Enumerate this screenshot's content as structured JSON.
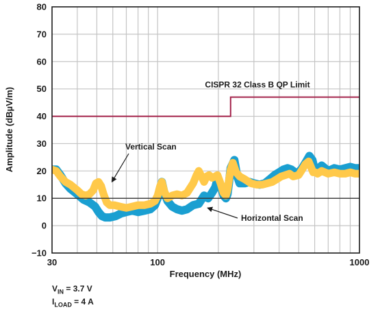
{
  "chart_data": {
    "type": "line",
    "xlabel": "Frequency (MHz)",
    "ylabel": "Amplitude (dBµV/m)",
    "xscale": "log",
    "xlim": [
      30,
      1000
    ],
    "ylim": [
      -10,
      80
    ],
    "x_ticks": [
      30,
      100,
      1000
    ],
    "x_tick_labels": [
      "30",
      "100",
      "1000"
    ],
    "y_ticks": [
      -10,
      0,
      10,
      20,
      30,
      40,
      50,
      60,
      70,
      80
    ],
    "y_tick_labels": [
      "−10",
      "0",
      "10",
      "20",
      "30",
      "40",
      "50",
      "60",
      "70",
      "80"
    ],
    "grid": true,
    "reference_line": {
      "y": 10,
      "color": "#333333"
    },
    "series": [
      {
        "name": "Horizontal Scan",
        "color": "#1a9fd1",
        "band_width": 3.0,
        "x": [
          30,
          31.5,
          33,
          35,
          37,
          40,
          43,
          46,
          49,
          51,
          53,
          55,
          58,
          62,
          66,
          70,
          75,
          80,
          86,
          92,
          97,
          100,
          103,
          105,
          108,
          112,
          118,
          125,
          132,
          140,
          150,
          160,
          170,
          178,
          186,
          193,
          198,
          205,
          212,
          218,
          222,
          226,
          230,
          240,
          248,
          255,
          262,
          270,
          285,
          300,
          320,
          340,
          360,
          380,
          400,
          420,
          440,
          460,
          480,
          500,
          520,
          545,
          565,
          585,
          600,
          620,
          650,
          700,
          750,
          800,
          850,
          900,
          950,
          1000
        ],
        "y": [
          20.5,
          20.5,
          18.5,
          15.5,
          13.5,
          11.5,
          9.5,
          8.5,
          7.0,
          5.0,
          3.5,
          3.0,
          3.0,
          3.5,
          4.5,
          5.0,
          5.5,
          5.0,
          5.5,
          6.0,
          7.5,
          10.0,
          14.0,
          16.0,
          12.0,
          9.0,
          7.0,
          6.0,
          5.5,
          6.0,
          7.5,
          8.0,
          11.0,
          10.0,
          12.0,
          14.0,
          17.0,
          15.0,
          11.0,
          10.0,
          11.5,
          16.0,
          21.0,
          24.0,
          18.0,
          15.5,
          15.5,
          15.5,
          16.0,
          15.5,
          15.0,
          15.5,
          17.0,
          18.5,
          19.5,
          20.5,
          21.0,
          20.5,
          19.5,
          19.5,
          21.0,
          23.5,
          25.5,
          24.0,
          20.5,
          20.5,
          22.0,
          20.0,
          21.0,
          20.5,
          21.0,
          21.5,
          21.0,
          21.0
        ]
      },
      {
        "name": "Vertical Scan",
        "color": "#ffc94a",
        "band_width": 2.8,
        "x": [
          30,
          31.5,
          33,
          35,
          37,
          40,
          42,
          44,
          46,
          48,
          49.5,
          51,
          52.5,
          54,
          56,
          58,
          61,
          65,
          70,
          75,
          80,
          86,
          92,
          97,
          100,
          103,
          105,
          108,
          112,
          118,
          125,
          132,
          140,
          150,
          156,
          160,
          165,
          170,
          175,
          180,
          186,
          193,
          198,
          205,
          212,
          218,
          222,
          226,
          230,
          236,
          245,
          255,
          270,
          290,
          310,
          330,
          350,
          370,
          390,
          410,
          430,
          450,
          470,
          500,
          520,
          540,
          560,
          575,
          590,
          605,
          620,
          650,
          700,
          750,
          800,
          850,
          900,
          950,
          1000
        ],
        "y": [
          20.5,
          20.0,
          18.0,
          16.0,
          15.0,
          13.0,
          11.5,
          11.0,
          11.5,
          13.0,
          15.5,
          16.0,
          14.5,
          11.5,
          8.5,
          7.5,
          7.5,
          7.0,
          6.5,
          7.0,
          7.5,
          7.5,
          8.0,
          9.0,
          11.0,
          14.5,
          16.0,
          12.5,
          10.0,
          11.0,
          11.5,
          11.0,
          12.0,
          15.5,
          18.5,
          20.0,
          18.0,
          16.0,
          18.0,
          18.5,
          17.5,
          18.0,
          18.5,
          15.5,
          12.0,
          11.0,
          13.0,
          17.0,
          20.5,
          23.0,
          19.5,
          18.0,
          17.0,
          15.5,
          15.0,
          15.0,
          15.5,
          16.0,
          17.0,
          18.0,
          18.5,
          19.0,
          18.0,
          18.5,
          20.5,
          22.5,
          23.5,
          21.5,
          19.5,
          19.5,
          19.0,
          20.0,
          19.0,
          19.5,
          19.0,
          19.0,
          19.5,
          19.0,
          19.0
        ]
      },
      {
        "name": "CISPR 32 Class B QP Limit",
        "color": "#a3234b",
        "step": true,
        "x": [
          30,
          230,
          230,
          1000
        ],
        "y": [
          40,
          40,
          47,
          47
        ]
      }
    ],
    "annotations": [
      {
        "text": "CISPR 32 Class B QP Limit"
      },
      {
        "text": "Vertical Scan",
        "arrow_to": [
          58,
          15
        ]
      },
      {
        "text": "Horizontal Scan",
        "arrow_to": [
          170,
          7
        ]
      }
    ]
  },
  "conditions": [
    {
      "symbol": "V",
      "sub": "IN",
      "rest": " = 3.7 V"
    },
    {
      "symbol": "I",
      "sub": "LOAD",
      "rest": " = 4 A"
    }
  ]
}
